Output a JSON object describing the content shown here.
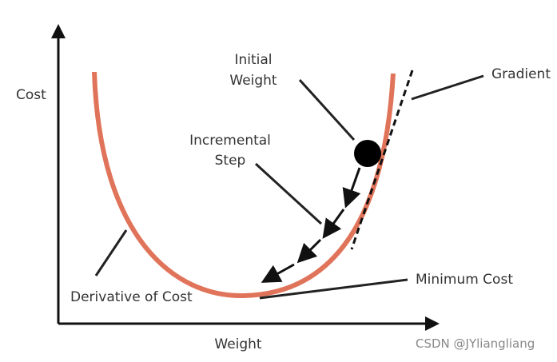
{
  "axes": {
    "y_label": "Cost",
    "x_label": "Weight"
  },
  "labels": {
    "initial_weight": [
      "Initial",
      "Weight"
    ],
    "incremental_step": [
      "Incremental",
      "Step"
    ],
    "gradient": "Gradient",
    "minimum_cost": "Minimum Cost",
    "derivative_of_cost": "Derivative of Cost"
  },
  "watermark": "CSDN @JYliangliang"
}
